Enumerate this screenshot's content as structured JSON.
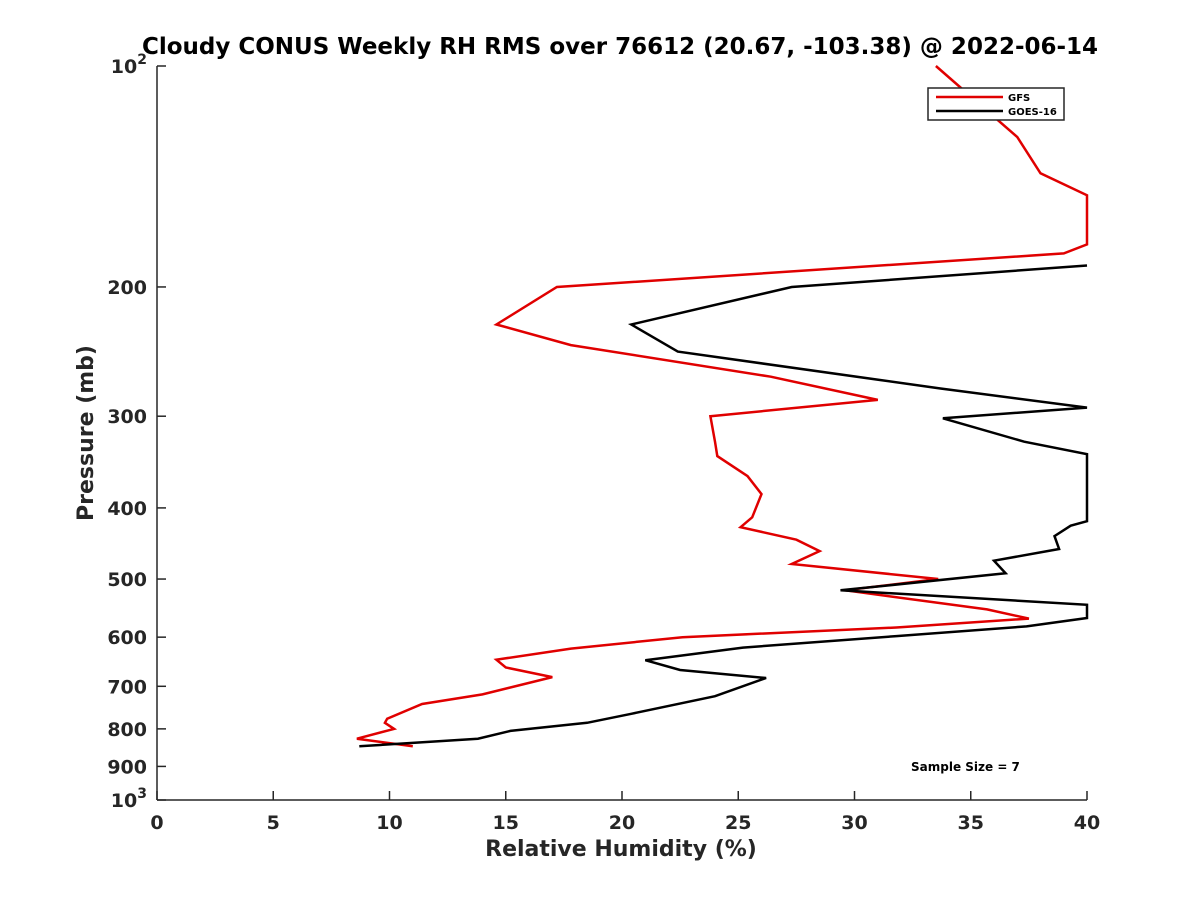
{
  "chart_data": {
    "type": "line",
    "title": "Cloudy CONUS Weekly RH RMS over 76612 (20.67, -103.38) @ 2022-06-14",
    "xlabel": "Relative Humidity (%)",
    "ylabel": "Pressure (mb)",
    "xlim": [
      0,
      40
    ],
    "ylim": [
      100,
      1000
    ],
    "yscale": "log",
    "y_reversed": true,
    "grid": false,
    "x_ticks": [
      0,
      5,
      10,
      15,
      20,
      25,
      30,
      35,
      40
    ],
    "x_tick_labels": [
      "0",
      "5",
      "10",
      "15",
      "20",
      "25",
      "30",
      "35",
      "40"
    ],
    "y_ticks": [
      100,
      200,
      300,
      400,
      500,
      600,
      700,
      800,
      900,
      1000
    ],
    "y_tick_labels": [
      {
        "base": "10",
        "exp": "2"
      },
      {
        "base": "200",
        "exp": ""
      },
      {
        "base": "300",
        "exp": ""
      },
      {
        "base": "400",
        "exp": ""
      },
      {
        "base": "500",
        "exp": ""
      },
      {
        "base": "600",
        "exp": ""
      },
      {
        "base": "700",
        "exp": ""
      },
      {
        "base": "800",
        "exp": ""
      },
      {
        "base": "900",
        "exp": ""
      },
      {
        "base": "10",
        "exp": "3"
      }
    ],
    "legend_position": "top-right",
    "annotation": "Sample Size = 7",
    "series": [
      {
        "name": "GFS",
        "color": "#e00000",
        "points": [
          [
            33.5,
            100
          ],
          [
            37.0,
            125
          ],
          [
            38.0,
            140
          ],
          [
            40.0,
            150
          ],
          [
            40.0,
            175
          ],
          [
            39.0,
            180
          ],
          [
            17.2,
            200
          ],
          [
            14.6,
            225
          ],
          [
            17.8,
            240
          ],
          [
            26.4,
            265
          ],
          [
            31.0,
            285
          ],
          [
            23.8,
            300
          ],
          [
            24.0,
            325
          ],
          [
            24.1,
            340
          ],
          [
            25.4,
            362
          ],
          [
            26.0,
            383
          ],
          [
            25.6,
            412
          ],
          [
            25.1,
            425
          ],
          [
            27.5,
            442
          ],
          [
            28.5,
            458
          ],
          [
            27.3,
            477
          ],
          [
            33.6,
            500
          ],
          [
            29.6,
            518
          ],
          [
            35.7,
            550
          ],
          [
            37.5,
            566
          ],
          [
            31.8,
            582
          ],
          [
            22.6,
            600
          ],
          [
            17.8,
            622
          ],
          [
            14.6,
            644
          ],
          [
            15.0,
            660
          ],
          [
            17.0,
            680
          ],
          [
            14.0,
            718
          ],
          [
            11.4,
            740
          ],
          [
            9.9,
            775
          ],
          [
            9.8,
            785
          ],
          [
            10.2,
            800
          ],
          [
            8.6,
            825
          ],
          [
            11.0,
            845
          ]
        ]
      },
      {
        "name": "GOES-16",
        "color": "#000000",
        "points": [
          [
            40.0,
            187
          ],
          [
            27.3,
            200
          ],
          [
            20.4,
            225
          ],
          [
            22.4,
            245
          ],
          [
            33.7,
            275
          ],
          [
            40.0,
            292
          ],
          [
            33.8,
            302
          ],
          [
            37.3,
            325
          ],
          [
            40.0,
            338
          ],
          [
            40.0,
            417
          ],
          [
            39.3,
            423
          ],
          [
            38.6,
            437
          ],
          [
            38.8,
            455
          ],
          [
            36.0,
            472
          ],
          [
            36.5,
            491
          ],
          [
            29.4,
            518
          ],
          [
            40.0,
            542
          ],
          [
            40.0,
            565
          ],
          [
            37.4,
            580
          ],
          [
            31.8,
            598
          ],
          [
            25.2,
            620
          ],
          [
            21.0,
            645
          ],
          [
            22.5,
            665
          ],
          [
            26.2,
            682
          ],
          [
            24.0,
            722
          ],
          [
            20.4,
            763
          ],
          [
            18.5,
            785
          ],
          [
            15.2,
            805
          ],
          [
            13.8,
            825
          ],
          [
            8.7,
            845
          ]
        ]
      }
    ]
  }
}
